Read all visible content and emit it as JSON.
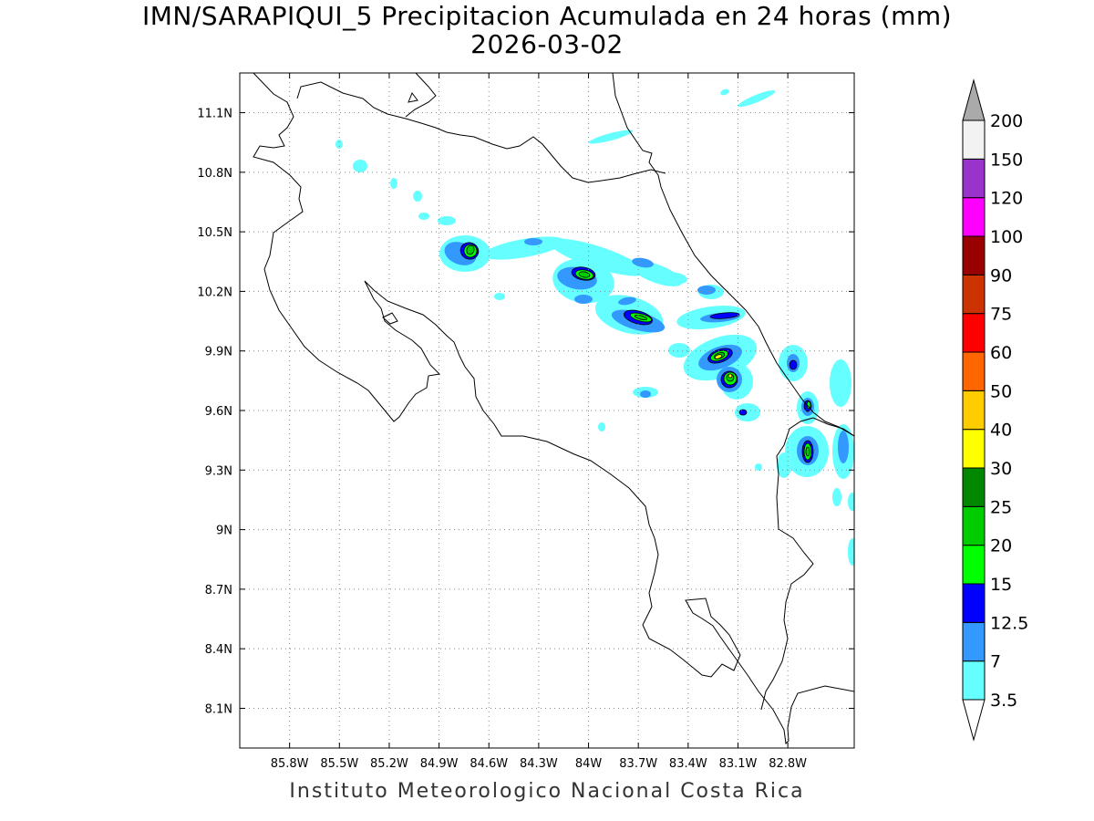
{
  "title": {
    "line1": "IMN/SARAPIQUI_5 Precipitacion Acumulada en 24 horas (mm)",
    "line2": "2026-03-02"
  },
  "footer": "Instituto Meteorologico Nacional Costa Rica",
  "map": {
    "lon_range": [
      -86.1,
      -82.4
    ],
    "lat_range": [
      7.9,
      11.3
    ],
    "lon_ticks": [
      -85.8,
      -85.5,
      -85.2,
      -84.9,
      -84.6,
      -84.3,
      -84.0,
      -83.7,
      -83.4,
      -83.1,
      -82.8
    ],
    "lon_tick_labels": [
      "85.8W",
      "85.5W",
      "85.2W",
      "84.9W",
      "84.6W",
      "84.3W",
      "84W",
      "83.7W",
      "83.4W",
      "83.1W",
      "82.8W"
    ],
    "lat_ticks": [
      8.1,
      8.4,
      8.7,
      9.0,
      9.3,
      9.6,
      9.9,
      10.2,
      10.5,
      10.8,
      11.1
    ],
    "lat_tick_labels": [
      "8.1N",
      "8.4N",
      "8.7N",
      "9N",
      "9.3N",
      "9.6N",
      "9.9N",
      "10.2N",
      "10.5N",
      "10.8N",
      "11.1N"
    ],
    "grid": "dotted"
  },
  "legend": {
    "levels": [
      3.5,
      7,
      12.5,
      15,
      20,
      25,
      30,
      40,
      50,
      60,
      75,
      90,
      100,
      120,
      150,
      200
    ],
    "labels": [
      "3.5",
      "7",
      "12.5",
      "15",
      "20",
      "25",
      "30",
      "40",
      "50",
      "60",
      "75",
      "90",
      "100",
      "120",
      "150",
      "200"
    ],
    "colors": [
      "#66ffff",
      "#3399ff",
      "#0000ff",
      "#00ff00",
      "#00cc00",
      "#008800",
      "#ffff00",
      "#ffcc00",
      "#ff6600",
      "#ff0000",
      "#cc3300",
      "#990000",
      "#ff00ff",
      "#9933cc",
      "#f2f2f2"
    ],
    "below_min_color": "#ffffff",
    "above_max_color": "#aaaaaa"
  }
}
